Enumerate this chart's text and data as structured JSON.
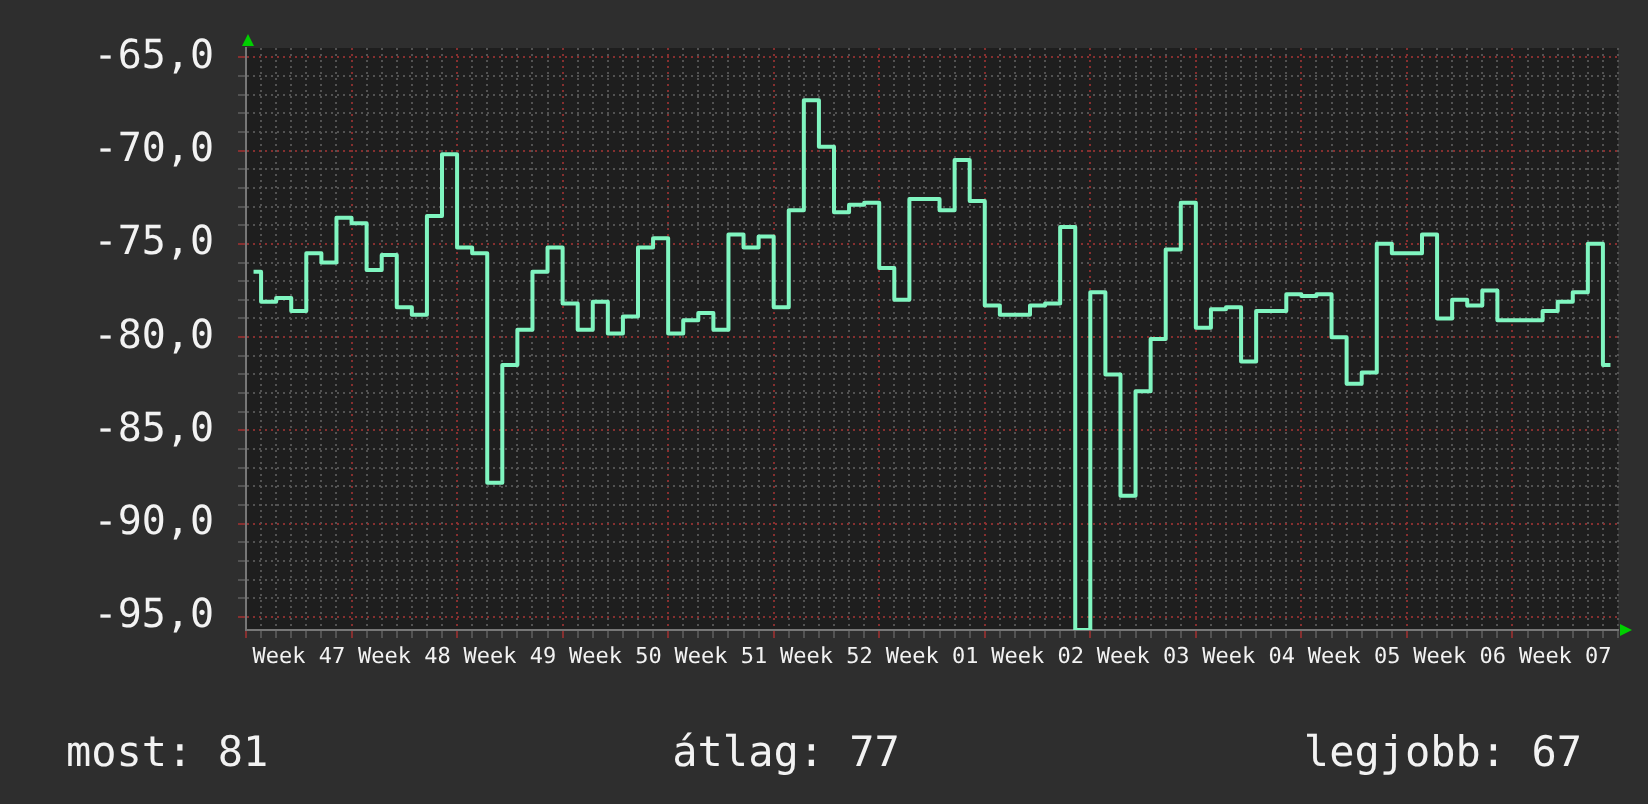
{
  "chart_data": {
    "type": "step",
    "categories": [
      null,
      null,
      null,
      "Week 47",
      null,
      null,
      null,
      null,
      null,
      null,
      "Week 48",
      null,
      null,
      null,
      null,
      null,
      null,
      "Week 49",
      null,
      null,
      null,
      null,
      null,
      null,
      "Week 50",
      null,
      null,
      null,
      null,
      null,
      null,
      "Week 51",
      null,
      null,
      null,
      null,
      null,
      null,
      "Week 52",
      null,
      null,
      null,
      null,
      null,
      null,
      "Week 01",
      null,
      null,
      null,
      null,
      null,
      null,
      "Week 02",
      null,
      null,
      null,
      null,
      null,
      null,
      "Week 03",
      null,
      null,
      null,
      null,
      null,
      null,
      "Week 04",
      null,
      null,
      null,
      null,
      null,
      null,
      "Week 05",
      null,
      null,
      null,
      null,
      null,
      null,
      "Week 06",
      null,
      null,
      null,
      null,
      null,
      null,
      "Week 07",
      null,
      null,
      null
    ],
    "series": [
      {
        "color": "#80f5c0",
        "values": [
          -76.5,
          -78.1,
          -77.9,
          -78.6,
          -75.5,
          -76.0,
          -73.6,
          -73.9,
          -76.4,
          -75.6,
          -78.4,
          -78.8,
          -73.5,
          -70.2,
          -75.2,
          -75.5,
          -87.8,
          -81.5,
          -79.6,
          -76.5,
          -75.2,
          -78.2,
          -79.6,
          -78.1,
          -79.8,
          -78.9,
          -75.2,
          -74.7,
          -79.8,
          -79.1,
          -78.7,
          -79.6,
          -74.5,
          -75.2,
          -74.6,
          -78.4,
          -73.2,
          -67.3,
          -69.8,
          -73.3,
          -72.9,
          -72.8,
          -76.3,
          -78.0,
          -72.6,
          -72.6,
          -73.2,
          -70.5,
          -72.7,
          -78.3,
          -78.8,
          -78.8,
          -78.3,
          -78.2,
          -74.1,
          -95.7,
          -77.6,
          -82.0,
          -88.5,
          -82.9,
          -80.1,
          -75.3,
          -72.8,
          -79.5,
          -78.5,
          -78.4,
          -81.3,
          -78.6,
          -78.6,
          -77.7,
          -77.8,
          -77.7,
          -80.0,
          -82.5,
          -81.9,
          -75.0,
          -75.5,
          -75.5,
          -74.5,
          -79.0,
          -78.0,
          -78.3,
          -77.5,
          -79.1,
          -79.1,
          -79.1,
          -78.6,
          -78.1,
          -77.6,
          -75.0,
          -81.5
        ]
      }
    ],
    "ylim": [
      -95.7,
      -64.5
    ],
    "yticks": [
      {
        "value": -95,
        "label": "-95,0"
      },
      {
        "value": -94,
        "label": null
      },
      {
        "value": -93,
        "label": null
      },
      {
        "value": -92,
        "label": null
      },
      {
        "value": -91,
        "label": null
      },
      {
        "value": -90,
        "label": "-90,0"
      },
      {
        "value": -89,
        "label": null
      },
      {
        "value": -88,
        "label": null
      },
      {
        "value": -87,
        "label": null
      },
      {
        "value": -86,
        "label": null
      },
      {
        "value": -85,
        "label": "-85,0"
      },
      {
        "value": -84,
        "label": null
      },
      {
        "value": -83,
        "label": null
      },
      {
        "value": -82,
        "label": null
      },
      {
        "value": -81,
        "label": null
      },
      {
        "value": -80,
        "label": "-80,0"
      },
      {
        "value": -79,
        "label": null
      },
      {
        "value": -78,
        "label": null
      },
      {
        "value": -77,
        "label": null
      },
      {
        "value": -76,
        "label": null
      },
      {
        "value": -75,
        "label": "-75,0"
      },
      {
        "value": -74,
        "label": null
      },
      {
        "value": -73,
        "label": null
      },
      {
        "value": -72,
        "label": null
      },
      {
        "value": -71,
        "label": null
      },
      {
        "value": -70,
        "label": "-70,0"
      },
      {
        "value": -69,
        "label": null
      },
      {
        "value": -68,
        "label": null
      },
      {
        "value": -67,
        "label": null
      },
      {
        "value": -66,
        "label": null
      },
      {
        "value": -65,
        "label": "-65,0"
      }
    ],
    "grid": true,
    "annotations": [
      "most: 81",
      "átlag: 77",
      "legjobb: 67"
    ]
  }
}
